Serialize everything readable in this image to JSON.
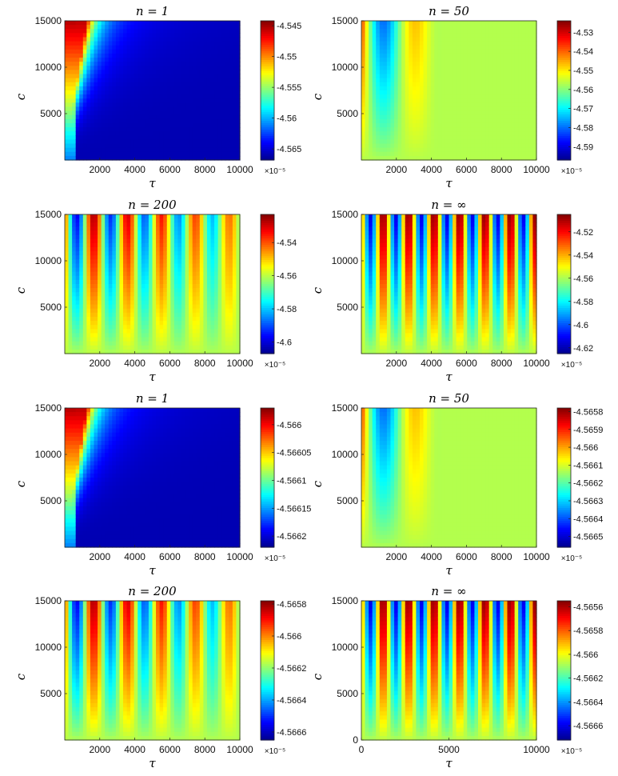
{
  "figure": {
    "colormap": [
      "#00008f",
      "#0000ff",
      "#0080ff",
      "#00ffff",
      "#80ff80",
      "#ffff00",
      "#ff8000",
      "#ff0000",
      "#800000"
    ]
  },
  "chart_data": [
    {
      "type": "heatmap",
      "title": "n = 1",
      "xlabel": "τ",
      "ylabel": "c",
      "xlim": [
        0,
        10000
      ],
      "ylim": [
        0,
        15000
      ],
      "xticks": [
        "2000",
        "4000",
        "6000",
        "8000",
        "10000"
      ],
      "yticks": [
        "5000",
        "10000",
        "15000"
      ],
      "colorbar": {
        "ticks": [
          "-4.545",
          "-4.55",
          "-4.555",
          "-4.56",
          "-4.565"
        ],
        "range": [
          -4.5668,
          -4.5442
        ],
        "multiplier": "×10⁻⁵"
      },
      "pattern": "diagonal"
    },
    {
      "type": "heatmap",
      "title": "n = 50",
      "xlabel": "τ",
      "ylabel": "c",
      "xlim": [
        0,
        10000
      ],
      "ylim": [
        0,
        15000
      ],
      "xticks": [
        "2000",
        "4000",
        "6000",
        "8000",
        "10000"
      ],
      "yticks": [
        "5000",
        "10000",
        "15000"
      ],
      "colorbar": {
        "ticks": [
          "-4.53",
          "-4.54",
          "-4.55",
          "-4.56",
          "-4.57",
          "-4.58",
          "-4.59"
        ],
        "range": [
          -4.597,
          -4.524
        ],
        "multiplier": "×10⁻⁵"
      },
      "pattern": "stripes",
      "stripes": 3
    },
    {
      "type": "heatmap",
      "title": "n = 200",
      "xlabel": "τ",
      "ylabel": "c",
      "xlim": [
        0,
        10000
      ],
      "ylim": [
        0,
        15000
      ],
      "xticks": [
        "2000",
        "4000",
        "6000",
        "8000",
        "10000"
      ],
      "yticks": [
        "5000",
        "10000",
        "15000"
      ],
      "colorbar": {
        "ticks": [
          "-4.54",
          "-4.56",
          "-4.58",
          "-4.6"
        ],
        "range": [
          -4.607,
          -4.523
        ],
        "multiplier": "×10⁻⁵"
      },
      "pattern": "stripes",
      "stripes": 6
    },
    {
      "type": "heatmap",
      "title": "n = ∞",
      "xlabel": "τ",
      "ylabel": "c",
      "xlim": [
        0,
        10000
      ],
      "ylim": [
        0,
        15000
      ],
      "xticks": [
        "2000",
        "4000",
        "6000",
        "8000",
        "10000"
      ],
      "yticks": [
        "5000",
        "10000",
        "15000"
      ],
      "colorbar": {
        "ticks": [
          "-4.52",
          "-4.54",
          "-4.56",
          "-4.58",
          "-4.6",
          "-4.62"
        ],
        "range": [
          -4.625,
          -4.505
        ],
        "multiplier": "×10⁻⁵"
      },
      "pattern": "stripes",
      "stripes": 8
    },
    {
      "type": "heatmap",
      "title": "n = 1",
      "xlabel": "τ",
      "ylabel": "c",
      "xlim": [
        0,
        10000
      ],
      "ylim": [
        0,
        15000
      ],
      "xticks": [
        "2000",
        "4000",
        "6000",
        "8000",
        "10000"
      ],
      "yticks": [
        "5000",
        "10000",
        "15000"
      ],
      "colorbar": {
        "ticks": [
          "-4.566",
          "-4.56605",
          "-4.5661",
          "-4.56615",
          "-4.5662"
        ],
        "range": [
          -4.56622,
          -4.56597
        ],
        "multiplier": "×10⁻⁵"
      },
      "pattern": "diagonal"
    },
    {
      "type": "heatmap",
      "title": "n = 50",
      "xlabel": "τ",
      "ylabel": "c",
      "xlim": [
        0,
        10000
      ],
      "ylim": [
        0,
        15000
      ],
      "xticks": [
        "2000",
        "4000",
        "6000",
        "8000",
        "10000"
      ],
      "yticks": [
        "5000",
        "10000",
        "15000"
      ],
      "colorbar": {
        "ticks": [
          "-4.5658",
          "-4.5659",
          "-4.566",
          "-4.5661",
          "-4.5662",
          "-4.5663",
          "-4.5664",
          "-4.5665"
        ],
        "range": [
          -4.56656,
          -4.56578
        ],
        "multiplier": "×10⁻⁵"
      },
      "pattern": "stripes",
      "stripes": 3
    },
    {
      "type": "heatmap",
      "title": "n = 200",
      "xlabel": "τ",
      "ylabel": "c",
      "xlim": [
        0,
        10000
      ],
      "ylim": [
        0,
        15000
      ],
      "xticks": [
        "2000",
        "4000",
        "6000",
        "8000",
        "10000"
      ],
      "yticks": [
        "5000",
        "10000",
        "15000"
      ],
      "colorbar": {
        "ticks": [
          "-4.5658",
          "-4.566",
          "-4.5662",
          "-4.5664",
          "-4.5666"
        ],
        "range": [
          -4.56665,
          -4.56578
        ],
        "multiplier": "×10⁻⁵"
      },
      "pattern": "stripes",
      "stripes": 6
    },
    {
      "type": "heatmap",
      "title": "n = ∞",
      "xlabel": "τ",
      "ylabel": "c",
      "xlim": [
        0,
        10000
      ],
      "ylim": [
        0,
        15000
      ],
      "xticks": [
        "0",
        "5000",
        "10000"
      ],
      "yticks": [
        "0",
        "5000",
        "10000",
        "15000"
      ],
      "colorbar": {
        "ticks": [
          "-4.5656",
          "-4.5658",
          "-4.566",
          "-4.5662",
          "-4.5664",
          "-4.5666"
        ],
        "range": [
          -4.56672,
          -4.56555
        ],
        "multiplier": "×10⁻⁵"
      },
      "pattern": "stripes",
      "stripes": 8
    }
  ]
}
